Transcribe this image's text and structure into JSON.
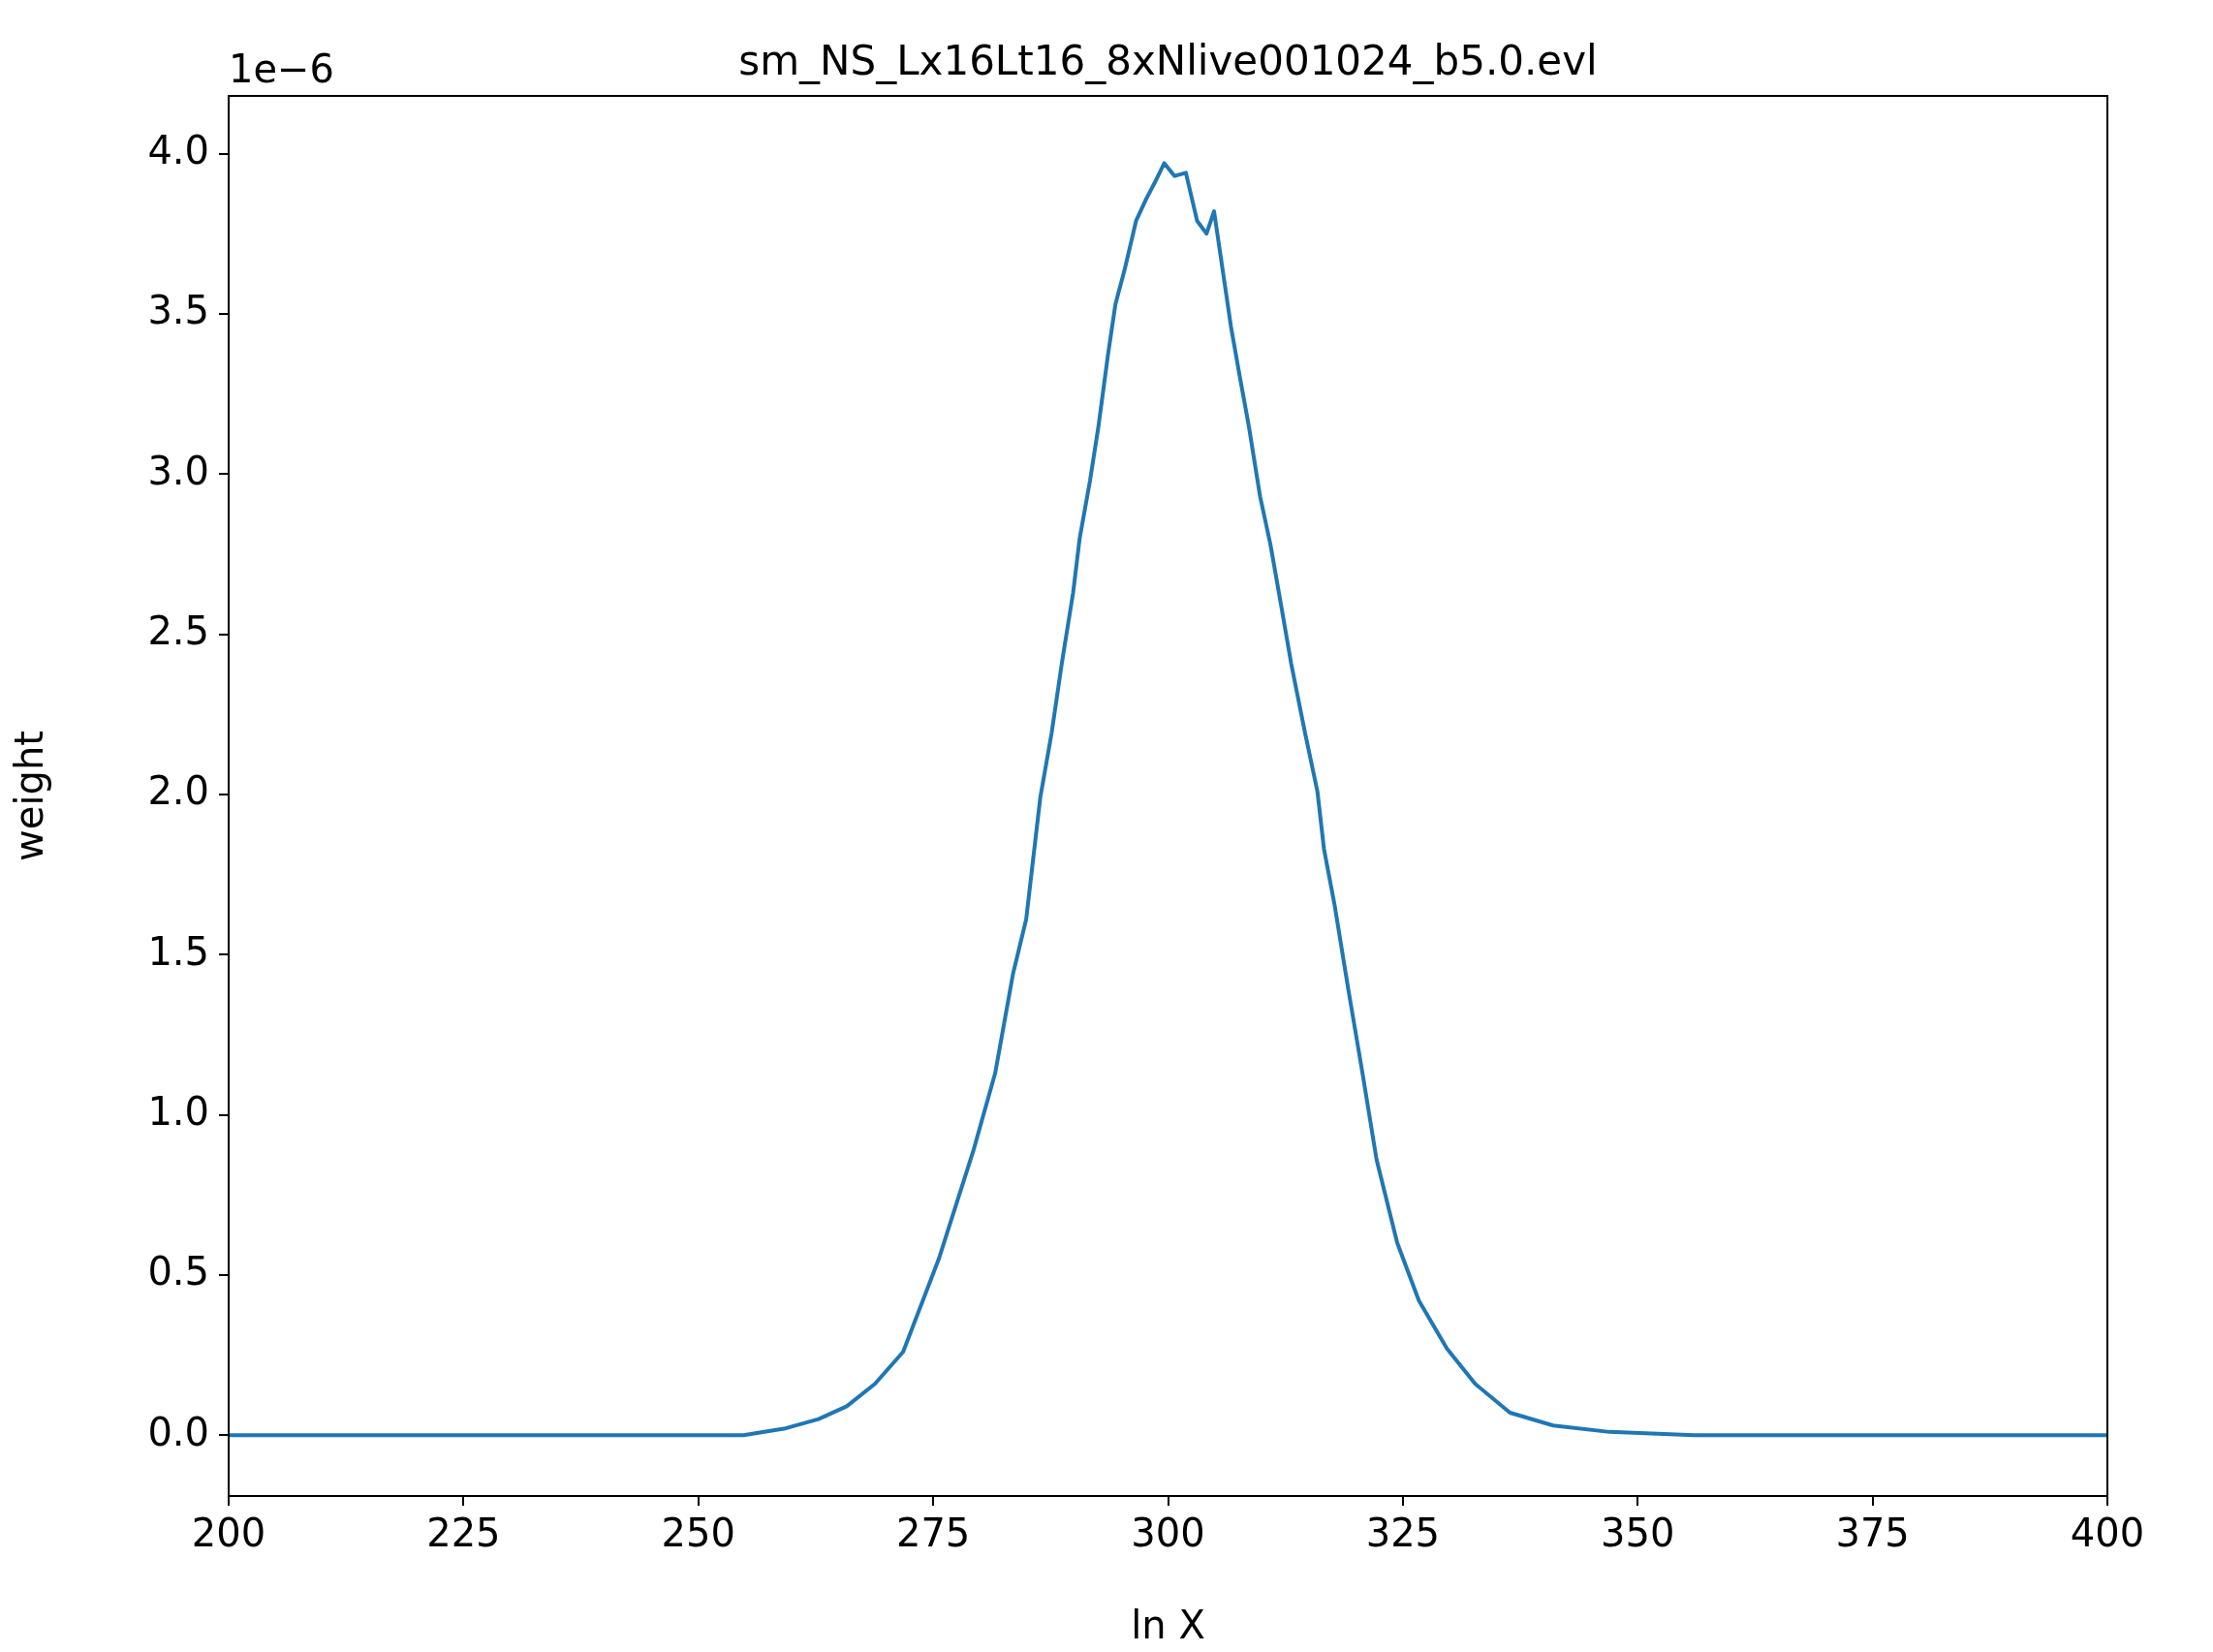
{
  "chart_data": {
    "type": "line",
    "title": "sm_NS_Lx16Lt16_8xNlive001024_b5.0.evl",
    "xlabel": "ln X",
    "ylabel": "weight",
    "annotations": [
      "1e−6"
    ],
    "x": [
      200,
      254.8,
      259.1,
      262.8,
      265.8,
      268.8,
      271.8,
      275.6,
      279.3,
      281.6,
      283.5,
      284.9,
      286.4,
      287.6,
      288.7,
      289.9,
      290.6,
      291.7,
      292.6,
      293.6,
      294.4,
      295.4,
      296.6,
      297.7,
      298.6,
      299.6,
      300.7,
      301.9,
      303.1,
      304.1,
      304.9,
      305.6,
      306.7,
      307.6,
      308.6,
      309.8,
      310.9,
      312.1,
      313.1,
      314.6,
      315.9,
      316.6,
      317.7,
      319.2,
      320.7,
      322.2,
      324.4,
      326.7,
      329.7,
      332.7,
      336.4,
      341.0,
      347.0,
      356,
      400
    ],
    "series": [
      {
        "color": "#1f77b4",
        "values": [
          0,
          0,
          0.02,
          0.05,
          0.09,
          0.16,
          0.26,
          0.55,
          0.89,
          1.13,
          1.44,
          1.61,
          1.99,
          2.19,
          2.41,
          2.63,
          2.8,
          2.98,
          3.15,
          3.37,
          3.53,
          3.64,
          3.79,
          3.86,
          3.91,
          3.97,
          3.93,
          3.94,
          3.79,
          3.75,
          3.82,
          3.68,
          3.46,
          3.31,
          3.15,
          2.93,
          2.78,
          2.58,
          2.41,
          2.19,
          2.01,
          1.83,
          1.66,
          1.39,
          1.13,
          0.86,
          0.6,
          0.42,
          0.27,
          0.16,
          0.07,
          0.03,
          0.01,
          0,
          0
        ]
      }
    ],
    "xlim": [
      200,
      400
    ],
    "xticks": [
      200,
      225,
      250,
      275,
      300,
      325,
      350,
      375,
      400
    ],
    "ylim": [
      -0.19,
      4.18
    ],
    "yticks": [
      {
        "value": 0,
        "label": "0.0"
      },
      {
        "value": 0.5,
        "label": "0.5"
      },
      {
        "value": 1,
        "label": "1.0"
      },
      {
        "value": 1.5,
        "label": "1.5"
      },
      {
        "value": 2,
        "label": "2.0"
      },
      {
        "value": 2.5,
        "label": "2.5"
      },
      {
        "value": 3,
        "label": "3.0"
      },
      {
        "value": 3.5,
        "label": "3.5"
      },
      {
        "value": 4,
        "label": "4.0"
      }
    ],
    "grid": false,
    "legend": false,
    "marker": "none",
    "line_style": "solid"
  }
}
